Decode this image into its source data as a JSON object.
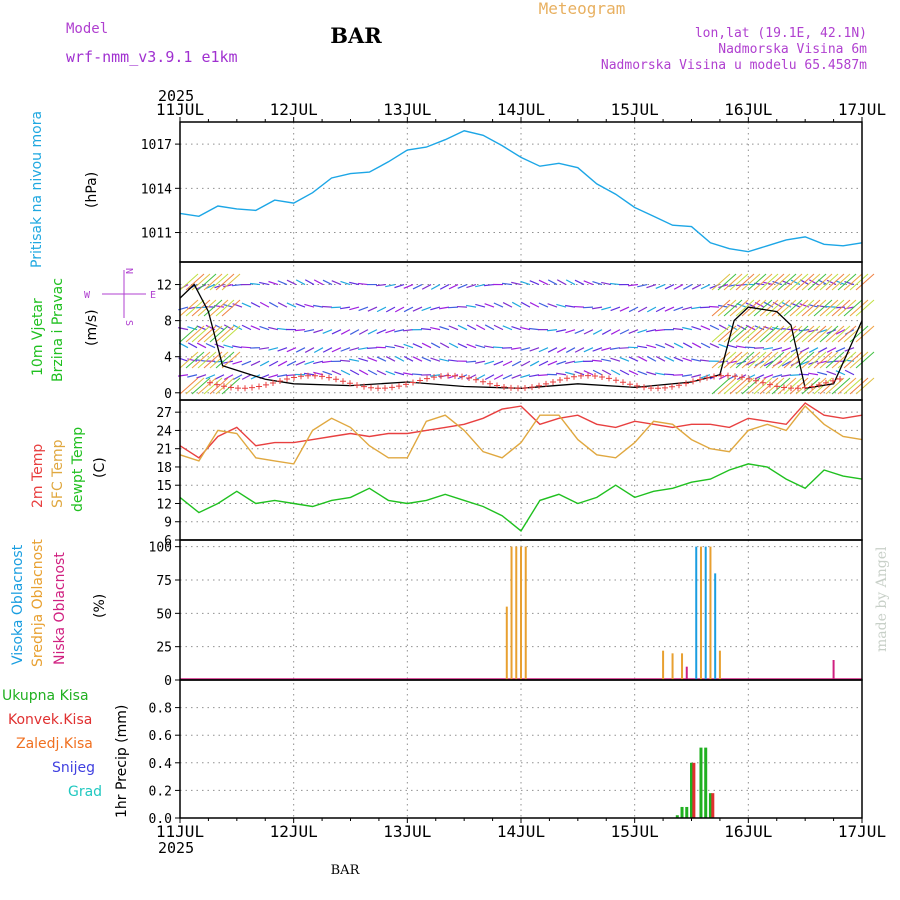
{
  "header": {
    "model_label": "Model",
    "model_name": "wrf-nmm_v3.9.1 e1km",
    "station": "BAR",
    "title": "Meteogram",
    "lonlat": "lon,lat (19.1E, 42.1N)",
    "elevation": "Nadmorska Visina 6m",
    "model_elevation": "Nadmorska Visina u modelu 65.4587m",
    "footer_station": "BAR",
    "credit": "made by Angel"
  },
  "time_axis": {
    "year": "2025",
    "ticks": [
      "11JUL",
      "12JUL",
      "13JUL",
      "14JUL",
      "15JUL",
      "16JUL",
      "17JUL"
    ]
  },
  "panels": {
    "pressure": {
      "label": "Pritisak na nivou mora",
      "unit": "(hPa)"
    },
    "wind": {
      "label1": "10m Vjetar",
      "label2": "Brzina i Pravac",
      "unit": "(m/s)",
      "compass_n": "N",
      "compass_w": "W",
      "compass_e": "E",
      "compass_s": "S"
    },
    "temp": {
      "label1": "2m Temp",
      "label2": "SFC Temp",
      "label3": "dewpt Temp",
      "unit": "(C)"
    },
    "cloud": {
      "label1": "Visoka Oblacnost",
      "label2": "Srednja Oblacnost",
      "label3": "Niska Oblacnost",
      "unit": "(%)"
    },
    "precip": {
      "unit": "1hr Precip (mm)",
      "legend": [
        "Ukupna Kisa",
        "Konvek.Kisa",
        "Zaledj.Kisa",
        "Snijeg",
        "Grad"
      ]
    }
  },
  "colors": {
    "pressure": "#1ca6e6",
    "temp2m": "#e84040",
    "sfc": "#e0a840",
    "dewpt": "#20c020",
    "high_cloud": "#1a9ee0",
    "mid_cloud": "#e8a030",
    "low_cloud": "#d02080",
    "rain": "#20b020",
    "conv": "#e03030",
    "frz": "#f07020",
    "snow": "#4040e0",
    "grad": "#20c8c0"
  },
  "chart_data": {
    "type": "line",
    "x_start": "2025-07-11 00:00",
    "x_end": "2025-07-17 00:00",
    "pressure": {
      "ylim": [
        1009,
        1018.5
      ],
      "ticks": [
        1011,
        1014,
        1017
      ],
      "x": [
        "2025-07-11 00:00",
        "2025-07-11 04:00",
        "2025-07-11 08:00",
        "2025-07-11 12:00",
        "2025-07-11 16:00",
        "2025-07-11 20:00",
        "2025-07-12 00:00",
        "2025-07-12 04:00",
        "2025-07-12 08:00",
        "2025-07-12 12:00",
        "2025-07-12 16:00",
        "2025-07-12 20:00",
        "2025-07-13 00:00",
        "2025-07-13 04:00",
        "2025-07-13 08:00",
        "2025-07-13 12:00",
        "2025-07-13 16:00",
        "2025-07-13 20:00",
        "2025-07-14 00:00",
        "2025-07-14 04:00",
        "2025-07-14 08:00",
        "2025-07-14 12:00",
        "2025-07-14 16:00",
        "2025-07-14 20:00",
        "2025-07-15 00:00",
        "2025-07-15 04:00",
        "2025-07-15 08:00",
        "2025-07-15 12:00",
        "2025-07-15 16:00",
        "2025-07-15 20:00",
        "2025-07-16 00:00",
        "2025-07-16 04:00",
        "2025-07-16 08:00",
        "2025-07-16 12:00",
        "2025-07-16 16:00",
        "2025-07-16 20:00",
        "2025-07-17 00:00"
      ],
      "values": [
        1012.3,
        1012.1,
        1012.8,
        1012.6,
        1012.5,
        1013.2,
        1013.0,
        1013.7,
        1014.7,
        1015.0,
        1015.1,
        1015.8,
        1016.6,
        1016.8,
        1017.3,
        1017.9,
        1017.6,
        1016.9,
        1016.1,
        1015.5,
        1015.7,
        1015.4,
        1014.3,
        1013.6,
        1012.7,
        1012.1,
        1011.5,
        1011.4,
        1010.3,
        1009.9,
        1009.7,
        1010.1,
        1010.5,
        1010.7,
        1010.2,
        1010.1,
        1010.3
      ]
    },
    "wind_speed": {
      "ylim": [
        -0.8,
        14.5
      ],
      "ticks": [
        0,
        4,
        8,
        12
      ],
      "x": [
        "2025-07-11 00:00",
        "2025-07-11 03:00",
        "2025-07-11 06:00",
        "2025-07-11 09:00",
        "2025-07-11 12:00",
        "2025-07-11 18:00",
        "2025-07-12 00:00",
        "2025-07-12 12:00",
        "2025-07-13 00:00",
        "2025-07-13 12:00",
        "2025-07-14 00:00",
        "2025-07-14 12:00",
        "2025-07-15 00:00",
        "2025-07-15 12:00",
        "2025-07-15 18:00",
        "2025-07-15 21:00",
        "2025-07-16 00:00",
        "2025-07-16 06:00",
        "2025-07-16 09:00",
        "2025-07-16 12:00",
        "2025-07-16 18:00",
        "2025-07-17 00:00"
      ],
      "values": [
        10.5,
        12.0,
        9.0,
        3.0,
        2.5,
        1.5,
        1.0,
        0.8,
        1.2,
        0.7,
        0.5,
        1.0,
        0.6,
        1.2,
        2.0,
        8.0,
        9.5,
        9.0,
        7.5,
        0.5,
        1.0,
        8.0
      ]
    },
    "temperature": {
      "ylim": [
        6,
        29
      ],
      "ticks": [
        6,
        9,
        12,
        15,
        18,
        21,
        24,
        27
      ],
      "x": [
        "2025-07-11 00:00",
        "2025-07-11 04:00",
        "2025-07-11 08:00",
        "2025-07-11 12:00",
        "2025-07-11 16:00",
        "2025-07-11 20:00",
        "2025-07-12 00:00",
        "2025-07-12 04:00",
        "2025-07-12 08:00",
        "2025-07-12 12:00",
        "2025-07-12 16:00",
        "2025-07-12 20:00",
        "2025-07-13 00:00",
        "2025-07-13 04:00",
        "2025-07-13 08:00",
        "2025-07-13 12:00",
        "2025-07-13 16:00",
        "2025-07-13 20:00",
        "2025-07-14 00:00",
        "2025-07-14 04:00",
        "2025-07-14 08:00",
        "2025-07-14 12:00",
        "2025-07-14 16:00",
        "2025-07-14 20:00",
        "2025-07-15 00:00",
        "2025-07-15 04:00",
        "2025-07-15 08:00",
        "2025-07-15 12:00",
        "2025-07-15 16:00",
        "2025-07-15 20:00",
        "2025-07-16 00:00",
        "2025-07-16 04:00",
        "2025-07-16 08:00",
        "2025-07-16 12:00",
        "2025-07-16 16:00",
        "2025-07-16 20:00",
        "2025-07-17 00:00"
      ],
      "series": [
        {
          "name": "2m Temp",
          "values": [
            21.5,
            19.5,
            23.0,
            24.5,
            21.5,
            22.0,
            22.0,
            22.5,
            23.0,
            23.5,
            23.0,
            23.5,
            23.5,
            24.0,
            24.5,
            25.0,
            26.0,
            27.5,
            28.0,
            25.0,
            26.0,
            26.5,
            25.0,
            24.5,
            25.5,
            25.0,
            24.5,
            25.0,
            25.0,
            24.5,
            26.0,
            25.5,
            25.0,
            28.5,
            26.5,
            26.0,
            26.5
          ]
        },
        {
          "name": "SFC Temp",
          "values": [
            20.0,
            19.0,
            24.0,
            23.5,
            19.5,
            19.0,
            18.5,
            24.0,
            26.0,
            24.5,
            21.5,
            19.5,
            19.5,
            25.5,
            26.5,
            24.0,
            20.5,
            19.5,
            22.0,
            26.5,
            26.5,
            22.5,
            20.0,
            19.5,
            22.0,
            25.5,
            25.0,
            22.5,
            21.0,
            20.5,
            24.0,
            25.0,
            24.0,
            28.0,
            25.0,
            23.0,
            22.5
          ]
        },
        {
          "name": "dewpt Temp",
          "values": [
            13.0,
            10.5,
            12.0,
            14.0,
            12.0,
            12.5,
            12.0,
            11.5,
            12.5,
            13.0,
            14.5,
            12.5,
            12.0,
            12.5,
            13.5,
            12.5,
            11.5,
            10.0,
            7.5,
            12.5,
            13.5,
            12.0,
            13.0,
            15.0,
            13.0,
            14.0,
            14.5,
            15.5,
            16.0,
            17.5,
            18.5,
            18.0,
            16.0,
            14.5,
            17.5,
            16.5,
            16.0
          ]
        }
      ]
    },
    "cloud": {
      "ylim": [
        0,
        105
      ],
      "ticks": [
        0,
        25,
        50,
        75,
        100
      ],
      "bars": [
        {
          "x": "2025-07-13 21:00",
          "series": "Srednja Oblacnost",
          "value": 55
        },
        {
          "x": "2025-07-13 22:00",
          "series": "Srednja Oblacnost",
          "value": 100
        },
        {
          "x": "2025-07-13 23:00",
          "series": "Srednja Oblacnost",
          "value": 100
        },
        {
          "x": "2025-07-14 00:00",
          "series": "Srednja Oblacnost",
          "value": 100
        },
        {
          "x": "2025-07-14 01:00",
          "series": "Srednja Oblacnost",
          "value": 100
        },
        {
          "x": "2025-07-15 06:00",
          "series": "Srednja Oblacnost",
          "value": 22
        },
        {
          "x": "2025-07-15 08:00",
          "series": "Srednja Oblacnost",
          "value": 20
        },
        {
          "x": "2025-07-15 10:00",
          "series": "Srednja Oblacnost",
          "value": 20
        },
        {
          "x": "2025-07-15 11:00",
          "series": "Niska Oblacnost",
          "value": 10
        },
        {
          "x": "2025-07-15 13:00",
          "series": "Visoka Oblacnost",
          "value": 100
        },
        {
          "x": "2025-07-15 14:00",
          "series": "Srednja Oblacnost",
          "value": 100
        },
        {
          "x": "2025-07-15 15:00",
          "series": "Visoka Oblacnost",
          "value": 100
        },
        {
          "x": "2025-07-15 16:00",
          "series": "Srednja Oblacnost",
          "value": 100
        },
        {
          "x": "2025-07-15 17:00",
          "series": "Visoka Oblacnost",
          "value": 80
        },
        {
          "x": "2025-07-15 18:00",
          "series": "Srednja Oblacnost",
          "value": 22
        },
        {
          "x": "2025-07-16 18:00",
          "series": "Niska Oblacnost",
          "value": 15
        }
      ]
    },
    "precip": {
      "ylim": [
        0,
        1.0
      ],
      "ticks": [
        0,
        0.2,
        0.4,
        0.6,
        0.8
      ],
      "bars": [
        {
          "x": "2025-07-15 09:00",
          "series": "Ukupna Kisa",
          "value": 0.02
        },
        {
          "x": "2025-07-15 10:00",
          "series": "Ukupna Kisa",
          "value": 0.08
        },
        {
          "x": "2025-07-15 11:00",
          "series": "Ukupna Kisa",
          "value": 0.08
        },
        {
          "x": "2025-07-15 12:00",
          "series": "Ukupna Kisa",
          "value": 0.4
        },
        {
          "x": "2025-07-15 12:30",
          "series": "Konvek.Kisa",
          "value": 0.4
        },
        {
          "x": "2025-07-15 14:00",
          "series": "Ukupna Kisa",
          "value": 0.51
        },
        {
          "x": "2025-07-15 15:00",
          "series": "Ukupna Kisa",
          "value": 0.51
        },
        {
          "x": "2025-07-15 16:00",
          "series": "Ukupna Kisa",
          "value": 0.18
        },
        {
          "x": "2025-07-15 16:30",
          "series": "Konvek.Kisa",
          "value": 0.18
        }
      ]
    }
  }
}
